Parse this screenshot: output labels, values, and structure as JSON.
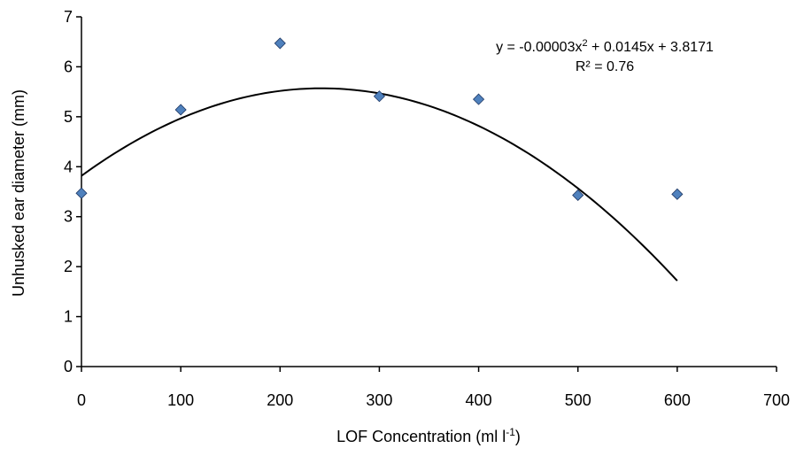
{
  "chart_data": {
    "type": "scatter",
    "x": [
      0,
      100,
      200,
      300,
      400,
      500,
      600
    ],
    "y": [
      3.47,
      5.14,
      6.47,
      5.41,
      5.35,
      3.43,
      3.45
    ],
    "xlabel": {
      "main": "LOF Concentration (ml l",
      "sup": "-1",
      "end": ")"
    },
    "ylabel": "Unhusked ear diameter (mm)",
    "xlim": [
      0,
      700
    ],
    "ylim": [
      0,
      7
    ],
    "xticks": [
      "0",
      "100",
      "200",
      "300",
      "400",
      "500",
      "600",
      "700"
    ],
    "yticks": [
      "0",
      "1",
      "2",
      "3",
      "4",
      "5",
      "6",
      "7"
    ],
    "grid": false,
    "trendline": {
      "type": "polynomial",
      "order": 2,
      "coefficients": {
        "a": -3e-05,
        "b": 0.0145,
        "c": 3.8171
      },
      "x_range": [
        0,
        600
      ],
      "equation": {
        "part1": "y = -0.00003x",
        "sup": "2",
        "part2": " + 0.0145x + 3.8171"
      },
      "r2": "R² = 0.76"
    },
    "colors": {
      "marker": "#4F81BD",
      "marker_stroke": "#1F3864",
      "trendline": "#000000"
    }
  }
}
